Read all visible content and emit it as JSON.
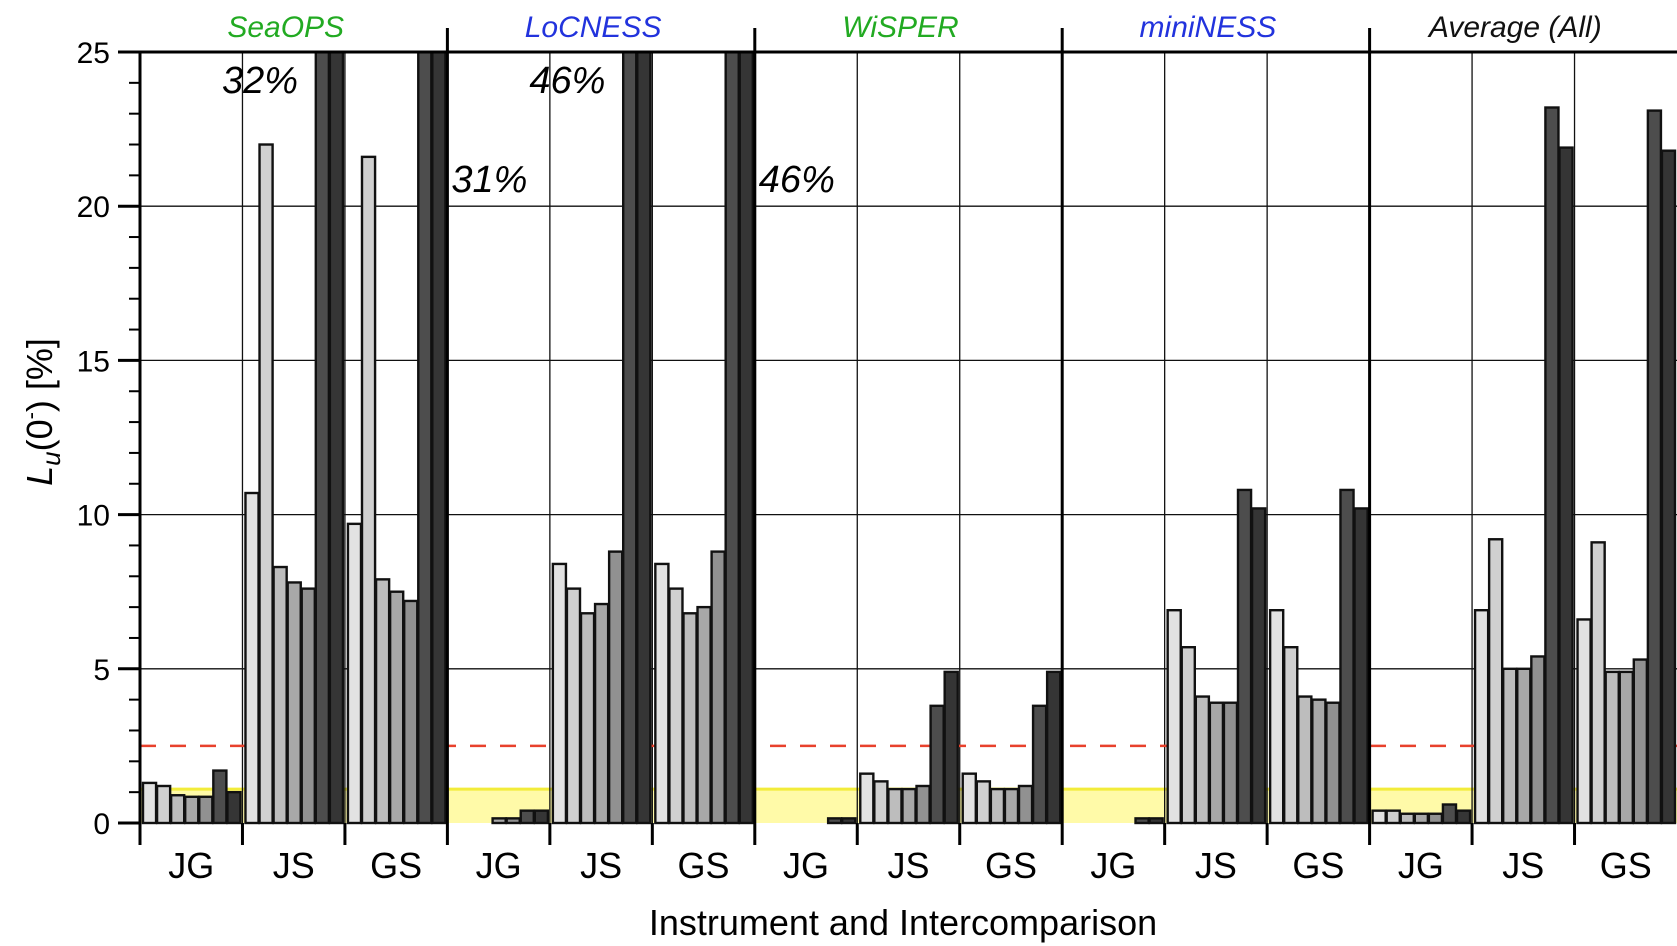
{
  "chart_data": {
    "type": "bar",
    "title": "",
    "xlabel": "Instrument and Intercomparison",
    "ylabel": "L",
    "ylabel_sub": "u",
    "ylabel_rest": "(0",
    "ylabel_sup": "-",
    "ylabel_end": ") [%]",
    "ylim": [
      0,
      25
    ],
    "yticks": [
      "0",
      "5",
      "10",
      "15",
      "20",
      "25"
    ],
    "grid": true,
    "legend": "none",
    "threshold_dashed": 2.5,
    "threshold_band": 1.1,
    "colors": {
      "band": "#fffaa8",
      "band_line": "#f2ec3a",
      "dashed": "#e8412c",
      "bar_stroke": "#111111",
      "shades": [
        "#e2e2e2",
        "#d0d0d0",
        "#bdbdbd",
        "#a8a8a8",
        "#919191",
        "#4d4d4d",
        "#353535"
      ]
    },
    "panels": [
      {
        "title": "SeaOPS",
        "title_color": "#22aa22",
        "groups": [
          {
            "label": "JG",
            "values": [
              1.3,
              1.2,
              0.9,
              0.85,
              0.85,
              1.7,
              1.0
            ]
          },
          {
            "label": "JS",
            "values": [
              10.7,
              22.0,
              8.3,
              7.8,
              7.6,
              25,
              25
            ]
          },
          {
            "label": "GS",
            "values": [
              9.7,
              21.6,
              7.9,
              7.5,
              7.2,
              25,
              25
            ]
          }
        ],
        "annotation": "32%"
      },
      {
        "title": "LoCNESS",
        "title_color": "#2233dd",
        "groups": [
          {
            "label": "JG",
            "values": [
              0,
              0,
              0,
              0.15,
              0.15,
              0.4,
              0.4
            ]
          },
          {
            "label": "JS",
            "values": [
              8.4,
              7.6,
              6.8,
              7.1,
              8.8,
              25,
              25
            ]
          },
          {
            "label": "GS",
            "values": [
              8.4,
              7.6,
              6.8,
              7.0,
              8.8,
              25,
              25
            ]
          }
        ],
        "annotation": "46%",
        "annotation_left": "31%"
      },
      {
        "title": "WiSPER",
        "title_color": "#22aa22",
        "groups": [
          {
            "label": "JG",
            "values": [
              0,
              0,
              0,
              0,
              0,
              0.15,
              0.15
            ]
          },
          {
            "label": "JS",
            "values": [
              1.6,
              1.35,
              1.1,
              1.1,
              1.2,
              3.8,
              4.9
            ]
          },
          {
            "label": "GS",
            "values": [
              1.6,
              1.35,
              1.1,
              1.1,
              1.2,
              3.8,
              4.9
            ]
          }
        ],
        "annotation_left": "46%"
      },
      {
        "title": "miniNESS",
        "title_color": "#2233dd",
        "groups": [
          {
            "label": "JG",
            "values": [
              0,
              0,
              0,
              0,
              0,
              0.15,
              0.15
            ]
          },
          {
            "label": "JS",
            "values": [
              6.9,
              5.7,
              4.1,
              3.9,
              3.9,
              10.8,
              10.2
            ]
          },
          {
            "label": "GS",
            "values": [
              6.9,
              5.7,
              4.1,
              4.0,
              3.9,
              10.8,
              10.2
            ]
          }
        ]
      },
      {
        "title": "Average (All)",
        "title_color": "#111111",
        "groups": [
          {
            "label": "JG",
            "values": [
              0.4,
              0.4,
              0.3,
              0.3,
              0.3,
              0.6,
              0.4
            ]
          },
          {
            "label": "JS",
            "values": [
              6.9,
              9.2,
              5.0,
              5.0,
              5.4,
              23.2,
              21.9
            ]
          },
          {
            "label": "GS",
            "values": [
              6.6,
              9.1,
              4.9,
              4.9,
              5.3,
              23.1,
              21.8
            ]
          }
        ]
      }
    ]
  }
}
